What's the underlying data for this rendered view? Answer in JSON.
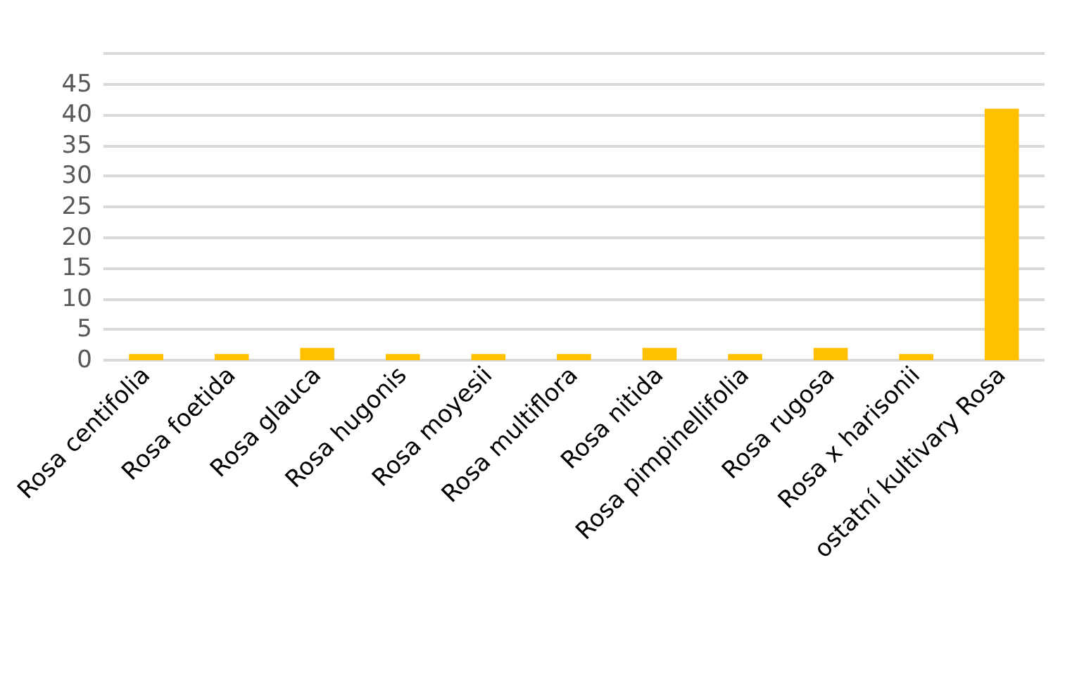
{
  "chart_data": {
    "type": "bar",
    "categories": [
      "Rosa centifolia",
      "Rosa foetida",
      "Rosa glauca",
      "Rosa hugonis",
      "Rosa moyesii",
      "Rosa multiflora",
      "Rosa nitida",
      "Rosa pimpinellifolia",
      "Rosa rugosa",
      "Rosa x harisonii",
      "ostatní kultivary Rosa"
    ],
    "values": [
      1,
      1,
      2,
      1,
      1,
      1,
      2,
      1,
      2,
      1,
      41
    ],
    "color": "#ffc000",
    "ylim": [
      0,
      50
    ],
    "yticks": [
      0,
      5,
      10,
      15,
      20,
      25,
      30,
      35,
      40,
      45,
      {
        "value": 50,
        "label": null
      }
    ],
    "grid": "y"
  }
}
